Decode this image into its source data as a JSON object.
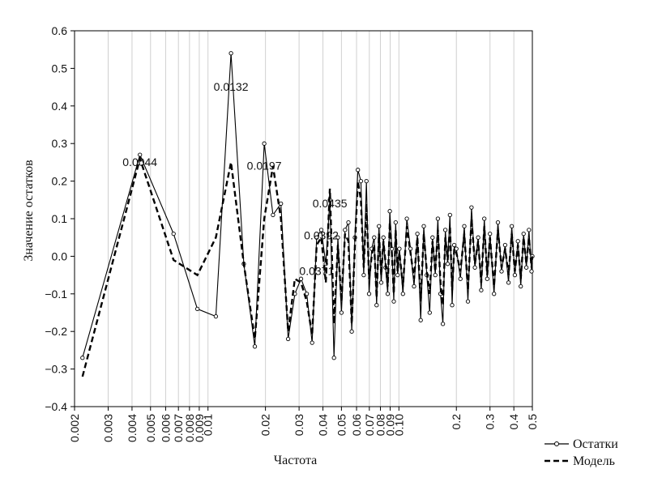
{
  "chart_data": {
    "type": "line",
    "xlabel": "Частота",
    "ylabel": "Значение остатков",
    "x_scale": "log",
    "xlim": [
      0.002,
      0.5
    ],
    "ylim": [
      -0.4,
      0.6
    ],
    "grid": "vertical",
    "legend_position": "bottom-right",
    "x_ticks": [
      "0.002",
      "0.003",
      "0.004",
      "0.005",
      "0.006",
      "0.007",
      "0.008",
      "0.009",
      "0.01",
      "0.02",
      "0.03",
      "0.04",
      "0.05",
      "0.06",
      "0.07",
      "0.08",
      "0.09",
      "0.10",
      "0.2",
      "0.3",
      "0.4",
      "0.5"
    ],
    "y_ticks": [
      "0.6",
      "0.5",
      "0.4",
      "0.3",
      "0.2",
      "0.1",
      "0.0",
      "−0.1",
      "−0.2",
      "−0.3",
      "−0.4"
    ],
    "y_tick_values": [
      0.6,
      0.5,
      0.4,
      0.3,
      0.2,
      0.1,
      0.0,
      -0.1,
      -0.2,
      -0.3,
      -0.4
    ],
    "annotations": [
      {
        "text": "0.0044",
        "x": 0.0044,
        "y": 0.24
      },
      {
        "text": "0.0132",
        "x": 0.0132,
        "y": 0.44
      },
      {
        "text": "0.0197",
        "x": 0.0197,
        "y": 0.23
      },
      {
        "text": "0.0435",
        "x": 0.0435,
        "y": 0.13
      },
      {
        "text": "0.0392",
        "x": 0.0392,
        "y": 0.045
      },
      {
        "text": "0.0371",
        "x": 0.0371,
        "y": -0.05
      }
    ],
    "series": [
      {
        "name": "Остатки",
        "style": "solid-markers",
        "points": [
          [
            0.0022,
            -0.27
          ],
          [
            0.0044,
            0.27
          ],
          [
            0.0066,
            0.06
          ],
          [
            0.0088,
            -0.14
          ],
          [
            0.011,
            -0.16
          ],
          [
            0.0132,
            0.54
          ],
          [
            0.0154,
            -0.02
          ],
          [
            0.0176,
            -0.24
          ],
          [
            0.0197,
            0.3
          ],
          [
            0.0219,
            0.11
          ],
          [
            0.0241,
            0.14
          ],
          [
            0.0263,
            -0.22
          ],
          [
            0.0285,
            -0.1
          ],
          [
            0.0307,
            -0.06
          ],
          [
            0.0329,
            -0.1
          ],
          [
            0.0351,
            -0.23
          ],
          [
            0.0371,
            0.05
          ],
          [
            0.0392,
            0.07
          ],
          [
            0.0414,
            -0.02
          ],
          [
            0.0435,
            0.15
          ],
          [
            0.0457,
            -0.27
          ],
          [
            0.0479,
            0.05
          ],
          [
            0.05,
            -0.15
          ],
          [
            0.0522,
            0.07
          ],
          [
            0.0544,
            0.09
          ],
          [
            0.0566,
            -0.2
          ],
          [
            0.0588,
            0.05
          ],
          [
            0.061,
            0.23
          ],
          [
            0.0632,
            0.2
          ],
          [
            0.0654,
            -0.05
          ],
          [
            0.0676,
            0.2
          ],
          [
            0.0698,
            -0.1
          ],
          [
            0.072,
            0.02
          ],
          [
            0.0742,
            0.05
          ],
          [
            0.0764,
            -0.13
          ],
          [
            0.0786,
            0.08
          ],
          [
            0.0808,
            -0.07
          ],
          [
            0.083,
            0.05
          ],
          [
            0.0852,
            -0.03
          ],
          [
            0.0874,
            -0.1
          ],
          [
            0.0896,
            0.12
          ],
          [
            0.0918,
            0.02
          ],
          [
            0.094,
            -0.12
          ],
          [
            0.0962,
            0.09
          ],
          [
            0.0984,
            -0.05
          ],
          [
            0.1006,
            0.02
          ],
          [
            0.105,
            -0.1
          ],
          [
            0.11,
            0.1
          ],
          [
            0.115,
            0.02
          ],
          [
            0.12,
            -0.08
          ],
          [
            0.125,
            0.06
          ],
          [
            0.13,
            -0.17
          ],
          [
            0.135,
            0.08
          ],
          [
            0.14,
            -0.05
          ],
          [
            0.145,
            -0.15
          ],
          [
            0.15,
            0.05
          ],
          [
            0.155,
            -0.05
          ],
          [
            0.16,
            0.1
          ],
          [
            0.165,
            -0.1
          ],
          [
            0.17,
            -0.18
          ],
          [
            0.175,
            0.07
          ],
          [
            0.18,
            -0.02
          ],
          [
            0.185,
            0.11
          ],
          [
            0.19,
            -0.13
          ],
          [
            0.195,
            0.03
          ],
          [
            0.2,
            0.02
          ],
          [
            0.21,
            -0.06
          ],
          [
            0.22,
            0.08
          ],
          [
            0.23,
            -0.12
          ],
          [
            0.24,
            0.13
          ],
          [
            0.25,
            -0.03
          ],
          [
            0.26,
            0.05
          ],
          [
            0.27,
            -0.09
          ],
          [
            0.28,
            0.1
          ],
          [
            0.29,
            -0.06
          ],
          [
            0.3,
            0.06
          ],
          [
            0.315,
            -0.1
          ],
          [
            0.33,
            0.09
          ],
          [
            0.345,
            -0.04
          ],
          [
            0.36,
            0.03
          ],
          [
            0.375,
            -0.07
          ],
          [
            0.39,
            0.08
          ],
          [
            0.405,
            -0.05
          ],
          [
            0.42,
            0.04
          ],
          [
            0.435,
            -0.08
          ],
          [
            0.45,
            0.06
          ],
          [
            0.465,
            -0.03
          ],
          [
            0.48,
            0.07
          ],
          [
            0.495,
            -0.04
          ],
          [
            0.5,
            0.0
          ]
        ]
      },
      {
        "name": "Модель",
        "style": "dashed",
        "points": [
          [
            0.0022,
            -0.32
          ],
          [
            0.0044,
            0.26
          ],
          [
            0.0066,
            -0.01
          ],
          [
            0.0088,
            -0.05
          ],
          [
            0.011,
            0.05
          ],
          [
            0.0132,
            0.25
          ],
          [
            0.0154,
            -0.02
          ],
          [
            0.0176,
            -0.22
          ],
          [
            0.0197,
            0.1
          ],
          [
            0.0219,
            0.24
          ],
          [
            0.0241,
            0.1
          ],
          [
            0.0263,
            -0.2
          ],
          [
            0.0285,
            -0.06
          ],
          [
            0.0307,
            -0.07
          ],
          [
            0.0329,
            -0.12
          ],
          [
            0.0351,
            -0.21
          ],
          [
            0.0371,
            0.03
          ],
          [
            0.0392,
            0.05
          ],
          [
            0.0414,
            -0.07
          ],
          [
            0.0435,
            0.18
          ],
          [
            0.0457,
            -0.18
          ],
          [
            0.0479,
            0.03
          ],
          [
            0.05,
            -0.12
          ],
          [
            0.0522,
            0.06
          ],
          [
            0.0544,
            0.04
          ],
          [
            0.0566,
            -0.18
          ],
          [
            0.0588,
            0.03
          ],
          [
            0.061,
            0.2
          ],
          [
            0.0632,
            0.15
          ],
          [
            0.0654,
            -0.03
          ],
          [
            0.0676,
            0.14
          ],
          [
            0.0698,
            -0.06
          ],
          [
            0.072,
            0.0
          ],
          [
            0.0742,
            0.03
          ],
          [
            0.0764,
            -0.11
          ],
          [
            0.0786,
            0.06
          ],
          [
            0.0808,
            -0.05
          ],
          [
            0.083,
            0.04
          ],
          [
            0.0852,
            -0.02
          ],
          [
            0.0874,
            -0.08
          ],
          [
            0.0896,
            0.09
          ],
          [
            0.0918,
            0.01
          ],
          [
            0.094,
            -0.1
          ],
          [
            0.0962,
            0.07
          ],
          [
            0.0984,
            -0.04
          ],
          [
            0.1006,
            0.01
          ],
          [
            0.105,
            -0.08
          ],
          [
            0.11,
            0.08
          ],
          [
            0.115,
            0.01
          ],
          [
            0.12,
            -0.06
          ],
          [
            0.125,
            0.05
          ],
          [
            0.13,
            -0.12
          ],
          [
            0.135,
            0.06
          ],
          [
            0.14,
            -0.04
          ],
          [
            0.145,
            -0.1
          ],
          [
            0.15,
            0.04
          ],
          [
            0.155,
            -0.04
          ],
          [
            0.16,
            0.07
          ],
          [
            0.165,
            -0.07
          ],
          [
            0.17,
            -0.13
          ],
          [
            0.175,
            0.05
          ],
          [
            0.18,
            -0.01
          ],
          [
            0.185,
            0.08
          ],
          [
            0.19,
            -0.09
          ],
          [
            0.195,
            0.02
          ],
          [
            0.2,
            0.01
          ],
          [
            0.21,
            -0.04
          ],
          [
            0.22,
            0.06
          ],
          [
            0.23,
            -0.09
          ],
          [
            0.24,
            0.1
          ],
          [
            0.25,
            -0.02
          ],
          [
            0.26,
            0.04
          ],
          [
            0.27,
            -0.07
          ],
          [
            0.28,
            0.08
          ],
          [
            0.29,
            -0.05
          ],
          [
            0.3,
            0.05
          ],
          [
            0.315,
            -0.08
          ],
          [
            0.33,
            0.07
          ],
          [
            0.345,
            -0.03
          ],
          [
            0.36,
            0.02
          ],
          [
            0.375,
            -0.05
          ],
          [
            0.39,
            0.06
          ],
          [
            0.405,
            -0.04
          ],
          [
            0.42,
            0.03
          ],
          [
            0.435,
            -0.06
          ],
          [
            0.45,
            0.05
          ],
          [
            0.465,
            -0.02
          ],
          [
            0.48,
            0.05
          ],
          [
            0.495,
            -0.03
          ],
          [
            0.5,
            0.0
          ]
        ]
      }
    ]
  }
}
